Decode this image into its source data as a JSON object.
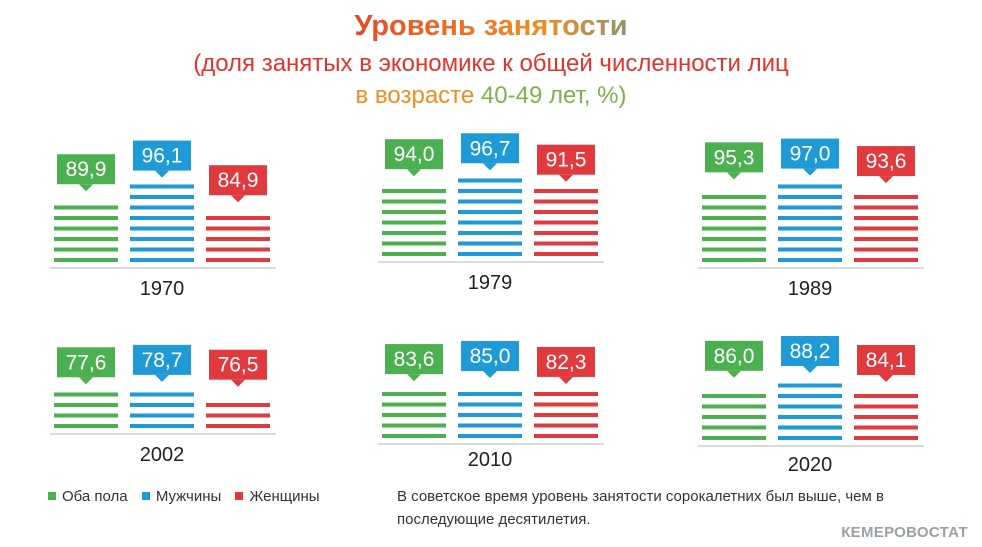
{
  "title": "Уровень занятости",
  "subtitle_line1": "(доля занятых в экономике к общей численности лиц",
  "subtitle_line2_a": "в возрасте ",
  "subtitle_line2_b": "40-49 лет, %)",
  "legend": [
    {
      "label": "Оба пола",
      "color": "#4caf50"
    },
    {
      "label": "Мужчины",
      "color": "#1e9ad6"
    },
    {
      "label": "Женщины",
      "color": "#e03a3e"
    }
  ],
  "note": "В советское время уровень занятости сорокалетних был выше, чем в последующие десятилетия.",
  "source": "КЕМЕРОВОСТАТ",
  "chart_data": {
    "type": "bar",
    "categories": [
      "1970",
      "1979",
      "1989",
      "2002",
      "2010",
      "2020"
    ],
    "series": [
      {
        "name": "Оба пола",
        "color": "#4caf50",
        "values": [
          "89,9",
          "94,0",
          "95,3",
          "77,6",
          "83,6",
          "86,0"
        ]
      },
      {
        "name": "Мужчины",
        "color": "#1e9ad6",
        "values": [
          "96,1",
          "96,7",
          "97,0",
          "78,7",
          "85,0",
          "88,2"
        ]
      },
      {
        "name": "Женщины",
        "color": "#e03a3e",
        "values": [
          "84,9",
          "91,5",
          "93,6",
          "76,5",
          "82,3",
          "84,1"
        ]
      }
    ]
  }
}
